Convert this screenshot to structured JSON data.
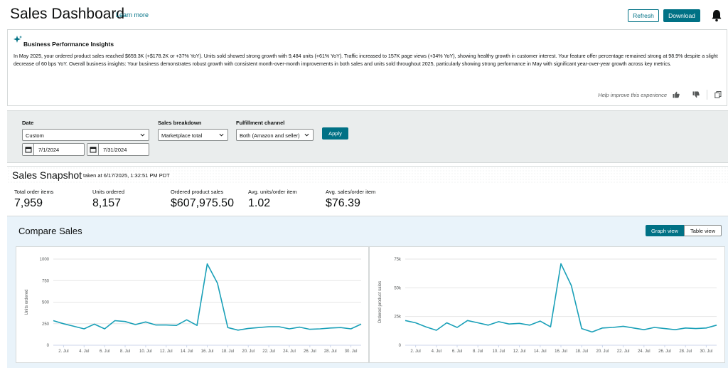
{
  "header": {
    "title": "Sales Dashboard",
    "learn_more": "Learn more",
    "refresh_label": "Refresh",
    "download_label": "Download"
  },
  "insights": {
    "title": "Business Performance Insights",
    "text": "In May 2025, your ordered product sales reached $659.3K (+$178.2K or +37% YoY). Units sold showed strong growth with 9,484 units (+61% YoY). Traffic increased to 157K page views (+34% YoY), showing healthy growth in customer interest. Your feature offer percentage remained strong at 98.9% despite a slight decrease of 60 bps YoY. Overall business insights: Your business demonstrates robust growth with consistent month-over-month improvements in both sales and units sold throughout 2025, particularly showing strong performance in May with significant year-over-year growth across key metrics.",
    "feedback": "Help improve this experience"
  },
  "filters": {
    "date_label": "Date",
    "date_value": "Custom",
    "start_date": "7/1/2024",
    "end_date": "7/31/2024",
    "breakdown_label": "Sales breakdown",
    "breakdown_value": "Marketplace total",
    "channel_label": "Fulfillment channel",
    "channel_value": "Both (Amazon and seller)",
    "apply_label": "Apply"
  },
  "snapshot": {
    "title": "Sales Snapshot",
    "taken_at": "taken at 6/17/2025, 1:32:51 PM PDT",
    "metrics": [
      {
        "label": "Total order items",
        "value": "7,959"
      },
      {
        "label": "Units ordered",
        "value": "8,157"
      },
      {
        "label": "Ordered product sales",
        "value": "$607,975.50"
      },
      {
        "label": "Avg. units/order item",
        "value": "1.02"
      },
      {
        "label": "Avg. sales/order item",
        "value": "$76.39"
      }
    ]
  },
  "compare": {
    "title": "Compare Sales",
    "graph_view": "Graph view",
    "table_view": "Table view"
  },
  "colors": {
    "accent": "#007185",
    "line": "#1aa0b8"
  },
  "chart_data": [
    {
      "type": "line",
      "title": "",
      "xlabel": "",
      "ylabel": "Units ordered",
      "x_tick_labels": [
        "2. Jul",
        "4. Jul",
        "6. Jul",
        "8. Jul",
        "10. Jul",
        "12. Jul",
        "14. Jul",
        "16. Jul",
        "18. Jul",
        "20. Jul",
        "22. Jul",
        "24. Jul",
        "26. Jul",
        "28. Jul",
        "30. Jul"
      ],
      "y_ticks": [
        "0",
        "250",
        "500",
        "750",
        "1000"
      ],
      "ylim": [
        0,
        1000
      ],
      "x": [
        1,
        2,
        3,
        4,
        5,
        6,
        7,
        8,
        9,
        10,
        11,
        12,
        13,
        14,
        15,
        16,
        17,
        18,
        19,
        20,
        21,
        22,
        23,
        24,
        25,
        26,
        27,
        28,
        29,
        30,
        31
      ],
      "values": [
        285,
        250,
        220,
        190,
        245,
        190,
        285,
        275,
        240,
        270,
        235,
        235,
        230,
        295,
        230,
        945,
        720,
        205,
        175,
        195,
        205,
        215,
        215,
        190,
        210,
        185,
        190,
        200,
        205,
        190,
        245
      ],
      "grid": true
    },
    {
      "type": "line",
      "title": "",
      "xlabel": "",
      "ylabel": "Ordered product sales",
      "x_tick_labels": [
        "2. Jul",
        "4. Jul",
        "6. Jul",
        "8. Jul",
        "10. Jul",
        "12. Jul",
        "14. Jul",
        "16. Jul",
        "18. Jul",
        "20. Jul",
        "22. Jul",
        "24. Jul",
        "26. Jul",
        "28. Jul",
        "30. Jul"
      ],
      "y_ticks": [
        "0",
        "25k",
        "50k",
        "75k"
      ],
      "ylim": [
        0,
        75000
      ],
      "x": [
        1,
        2,
        3,
        4,
        5,
        6,
        7,
        8,
        9,
        10,
        11,
        12,
        13,
        14,
        15,
        16,
        17,
        18,
        19,
        20,
        21,
        22,
        23,
        24,
        25,
        26,
        27,
        28,
        29,
        30,
        31
      ],
      "values": [
        21500,
        19500,
        16000,
        13000,
        19500,
        15500,
        21500,
        19500,
        17500,
        20500,
        18500,
        19000,
        17500,
        21000,
        16000,
        71000,
        52000,
        14500,
        11500,
        15000,
        15500,
        16500,
        15000,
        13500,
        15500,
        14500,
        13500,
        15000,
        14500,
        15000,
        17500
      ],
      "grid": true
    }
  ]
}
